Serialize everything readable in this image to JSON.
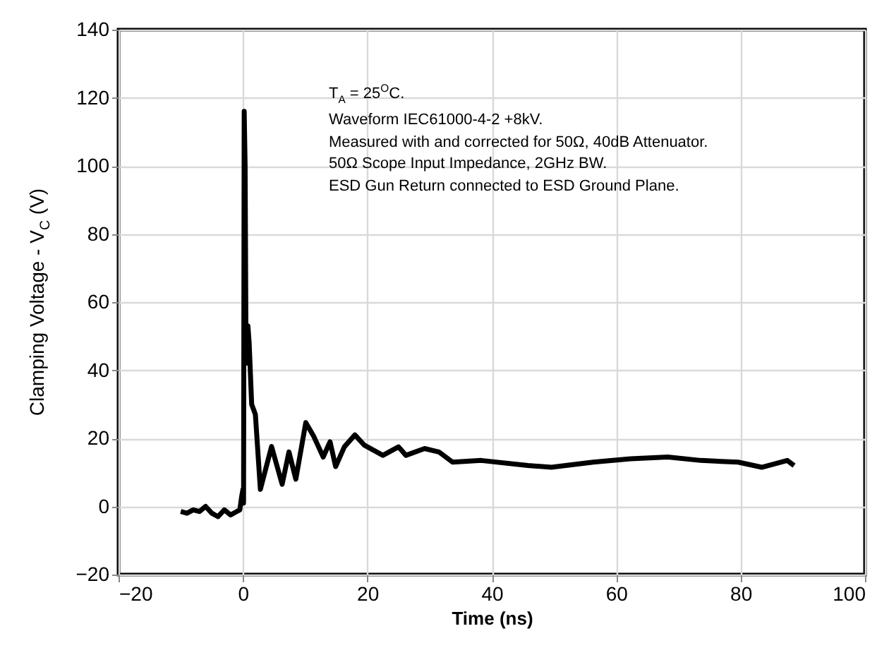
{
  "chart_data": {
    "type": "line",
    "xlabel": "Time (ns)",
    "ylabel": "Clamping Voltage - V$_{C}$ (V)",
    "annotations": [
      "T$_{A}$ = 25$^{O}$C.",
      "Waveform IEC61000-4-2 +8kV.",
      "Measured with and corrected for 50Ω, 40dB Attenuator.",
      "50Ω Scope Input Impedance, 2GHz BW.",
      "ESD Gun Return connected to ESD Ground Plane."
    ],
    "xlim": [
      -20,
      100
    ],
    "xticks": [
      -20,
      0,
      20,
      40,
      60,
      80,
      100
    ],
    "ylim": [
      -20,
      140
    ],
    "yticks": [
      -20,
      0,
      20,
      40,
      60,
      80,
      100,
      120,
      140
    ],
    "grid": true,
    "line_style": "solid",
    "marker": "none",
    "series": [
      {
        "color": "#000000",
        "x": [
          -10,
          -9,
          -8,
          -7,
          -6,
          -5,
          -4,
          -3,
          -2,
          -1,
          -0.5,
          -0.2,
          0,
          0.1,
          0.2,
          0.35,
          0.5,
          0.8,
          1.0,
          1.4,
          2,
          2.8,
          4.6,
          6.3,
          7.4,
          8.5,
          10.1,
          11.4,
          12.9,
          14,
          14.9,
          16.3,
          18,
          19.5,
          22.5,
          25,
          26.2,
          29.2,
          31.5,
          33.7,
          38.3,
          45.8,
          49.6,
          56.3,
          62.3,
          68.3,
          73.6,
          79.6,
          83.4,
          87.5,
          88.6
        ],
        "values": [
          -1.5,
          -2,
          -1,
          -1.5,
          0,
          -2,
          -3,
          -1,
          -2.5,
          -1.5,
          -1,
          3,
          5,
          1,
          116,
          100,
          42,
          53,
          48,
          30,
          27,
          5,
          17.6,
          6.5,
          16,
          8,
          24.6,
          20.5,
          14.5,
          19,
          11.7,
          17.5,
          21,
          18,
          15,
          17.5,
          15,
          17,
          16,
          13,
          13.5,
          12,
          11.5,
          13,
          14,
          14.5,
          13.5,
          13,
          11.5,
          13.5,
          12
        ]
      }
    ]
  }
}
